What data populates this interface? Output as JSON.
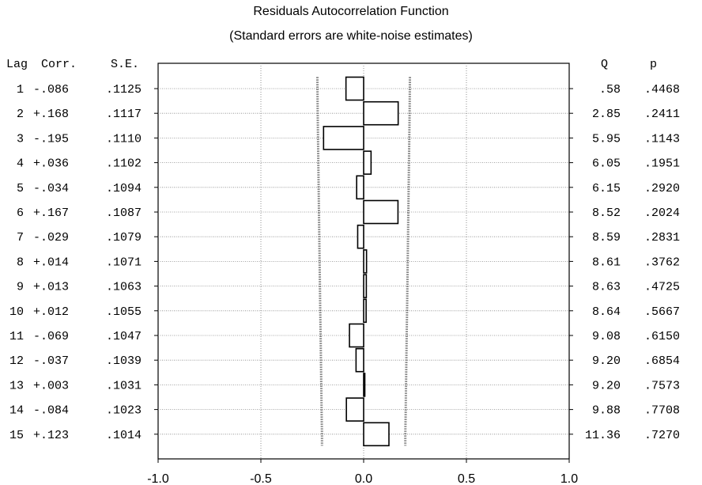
{
  "chart_data": {
    "type": "bar",
    "title": "Residuals Autocorrelation Function",
    "subtitle": "(Standard errors are white-noise estimates)",
    "columns": {
      "lag": "Lag",
      "corr": "Corr.",
      "se": "S.E.",
      "q": "Q",
      "p": "p"
    },
    "xlim": [
      -1.0,
      1.0
    ],
    "xticks": [
      "-1.0",
      "-0.5",
      "0.0",
      "0.5",
      "1.0"
    ],
    "xtick_values": [
      -1.0,
      -0.5,
      0.0,
      0.5,
      1.0
    ],
    "grid": true,
    "rows": [
      {
        "lag": "1",
        "corr": "-.086",
        "value": -0.086,
        "se": ".1125",
        "q": ".58",
        "p": ".4468"
      },
      {
        "lag": "2",
        "corr": "+.168",
        "value": 0.168,
        "se": ".1117",
        "q": "2.85",
        "p": ".2411"
      },
      {
        "lag": "3",
        "corr": "-.195",
        "value": -0.195,
        "se": ".1110",
        "q": "5.95",
        "p": ".1143"
      },
      {
        "lag": "4",
        "corr": "+.036",
        "value": 0.036,
        "se": ".1102",
        "q": "6.05",
        "p": ".1951"
      },
      {
        "lag": "5",
        "corr": "-.034",
        "value": -0.034,
        "se": ".1094",
        "q": "6.15",
        "p": ".2920"
      },
      {
        "lag": "6",
        "corr": "+.167",
        "value": 0.167,
        "se": ".1087",
        "q": "8.52",
        "p": ".2024"
      },
      {
        "lag": "7",
        "corr": "-.029",
        "value": -0.029,
        "se": ".1079",
        "q": "8.59",
        "p": ".2831"
      },
      {
        "lag": "8",
        "corr": "+.014",
        "value": 0.014,
        "se": ".1071",
        "q": "8.61",
        "p": ".3762"
      },
      {
        "lag": "9",
        "corr": "+.013",
        "value": 0.013,
        "se": ".1063",
        "q": "8.63",
        "p": ".4725"
      },
      {
        "lag": "10",
        "corr": "+.012",
        "value": 0.012,
        "se": ".1055",
        "q": "8.64",
        "p": ".5667"
      },
      {
        "lag": "11",
        "corr": "-.069",
        "value": -0.069,
        "se": ".1047",
        "q": "9.08",
        "p": ".6150"
      },
      {
        "lag": "12",
        "corr": "-.037",
        "value": -0.037,
        "se": ".1039",
        "q": "9.20",
        "p": ".6854"
      },
      {
        "lag": "13",
        "corr": "+.003",
        "value": 0.003,
        "se": ".1031",
        "q": "9.20",
        "p": ".7573"
      },
      {
        "lag": "14",
        "corr": "-.084",
        "value": -0.084,
        "se": ".1023",
        "q": "9.88",
        "p": ".7708"
      },
      {
        "lag": "15",
        "corr": "+.123",
        "value": 0.123,
        "se": ".1014",
        "q": "11.36",
        "p": ".7270"
      }
    ]
  }
}
